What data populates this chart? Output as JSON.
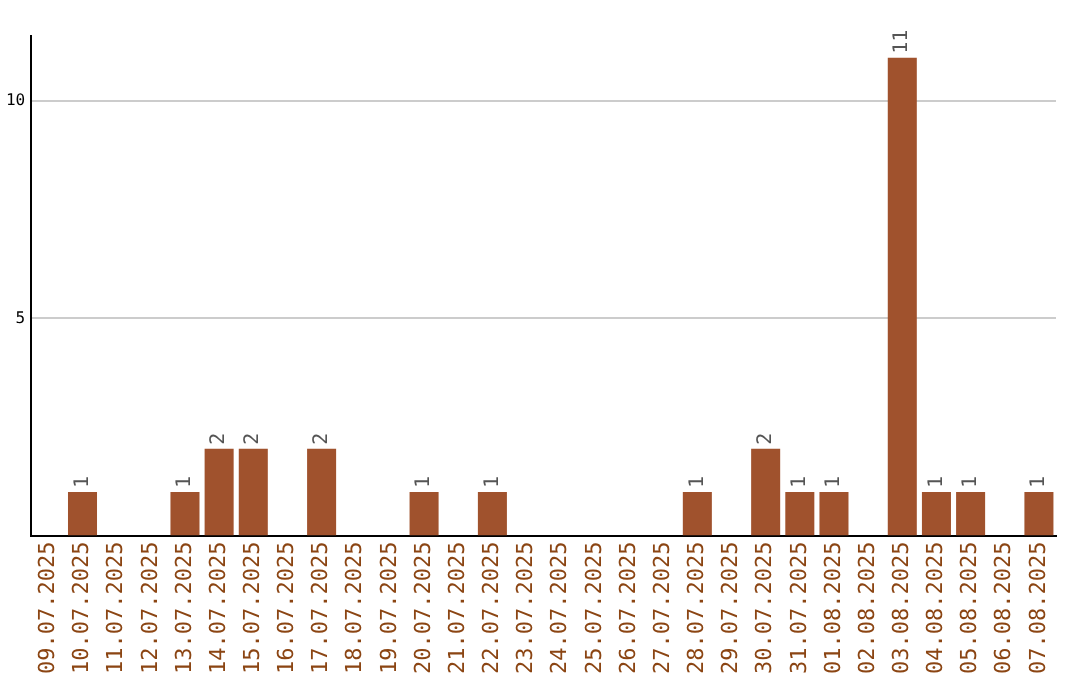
{
  "chart_data": {
    "type": "bar",
    "categories": [
      "09.07.2025",
      "10.07.2025",
      "11.07.2025",
      "12.07.2025",
      "13.07.2025",
      "14.07.2025",
      "15.07.2025",
      "16.07.2025",
      "17.07.2025",
      "18.07.2025",
      "19.07.2025",
      "20.07.2025",
      "21.07.2025",
      "22.07.2025",
      "23.07.2025",
      "24.07.2025",
      "25.07.2025",
      "26.07.2025",
      "27.07.2025",
      "28.07.2025",
      "29.07.2025",
      "30.07.2025",
      "31.07.2025",
      "01.08.2025",
      "02.08.2025",
      "03.08.2025",
      "04.08.2025",
      "05.08.2025",
      "06.08.2025",
      "07.08.2025"
    ],
    "values": [
      0,
      1,
      0,
      0,
      1,
      2,
      2,
      0,
      2,
      0,
      0,
      1,
      0,
      1,
      0,
      0,
      0,
      0,
      0,
      1,
      0,
      2,
      1,
      1,
      0,
      11,
      1,
      1,
      0,
      1
    ],
    "value_labels": [
      null,
      "1",
      null,
      null,
      "1",
      "2",
      "2",
      null,
      "2",
      null,
      null,
      "1",
      null,
      "1",
      null,
      null,
      null,
      null,
      null,
      "1",
      null,
      "2",
      "1",
      "1",
      null,
      "11",
      "1",
      "1",
      null,
      "1"
    ],
    "color": "#a0522d",
    "ylim": [
      0,
      11.5
    ],
    "yticks": [
      5,
      10
    ],
    "grid": "y",
    "legend": false
  }
}
